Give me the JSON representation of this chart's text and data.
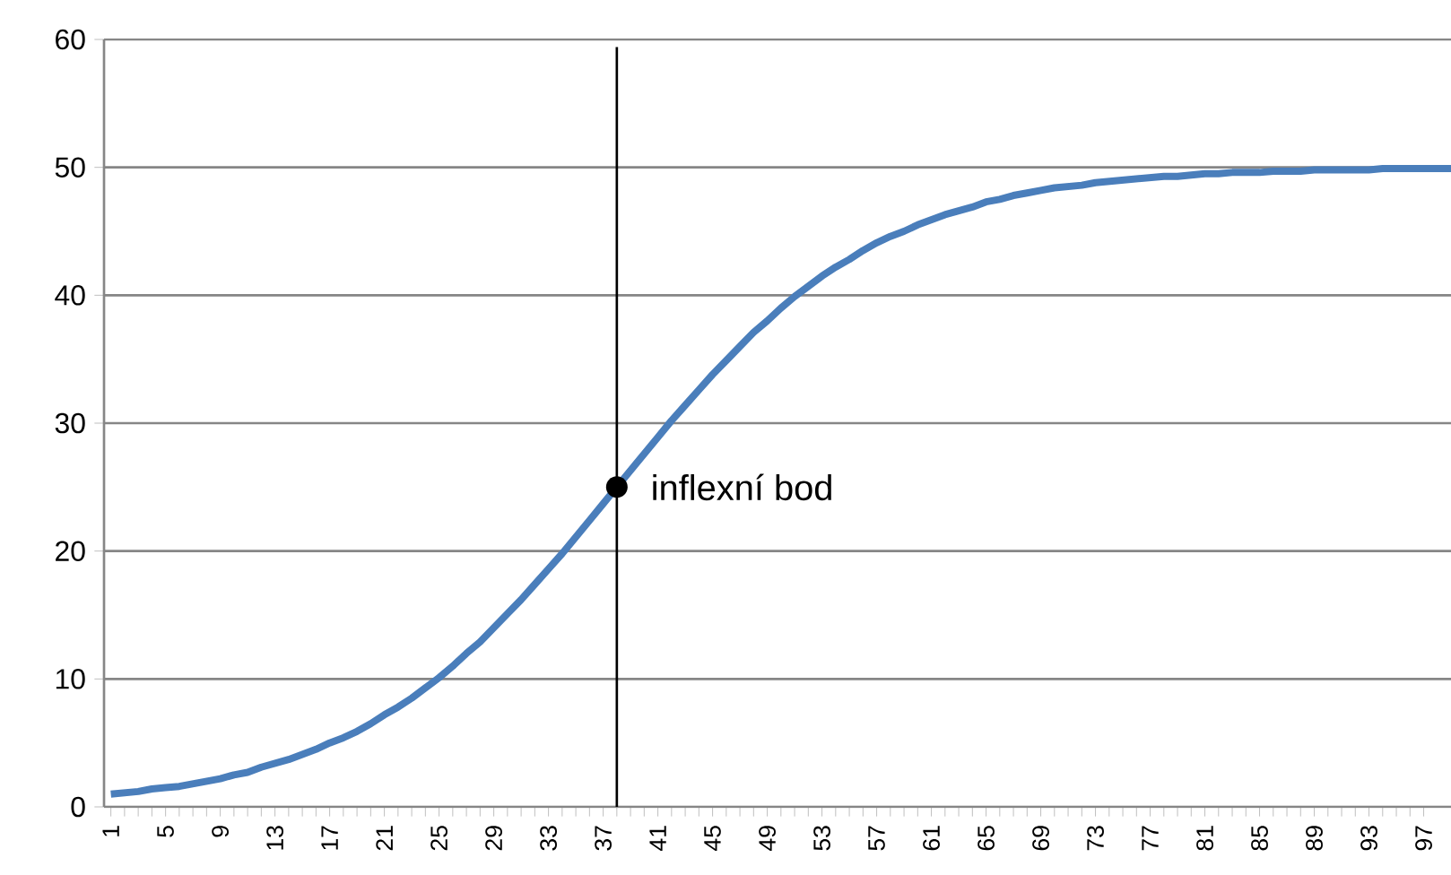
{
  "chart_data": {
    "type": "line",
    "x": [
      1,
      2,
      3,
      4,
      5,
      6,
      7,
      8,
      9,
      10,
      11,
      12,
      13,
      14,
      15,
      16,
      17,
      18,
      19,
      20,
      21,
      22,
      23,
      24,
      25,
      26,
      27,
      28,
      29,
      30,
      31,
      32,
      33,
      34,
      35,
      36,
      37,
      38,
      39,
      40,
      41,
      42,
      43,
      44,
      45,
      46,
      47,
      48,
      49,
      50,
      51,
      52,
      53,
      54,
      55,
      56,
      57,
      58,
      59,
      60,
      61,
      62,
      63,
      64,
      65,
      66,
      67,
      68,
      69,
      70,
      71,
      72,
      73,
      74,
      75,
      76,
      77,
      78,
      79,
      80,
      81,
      82,
      83,
      84,
      85,
      86,
      87,
      88,
      89,
      90,
      91,
      92,
      93,
      94,
      95,
      96,
      97,
      98,
      99
    ],
    "series": [
      {
        "color": "#4a7ebb",
        "values": [
          1.0,
          1.1,
          1.2,
          1.4,
          1.5,
          1.6,
          1.8,
          2.0,
          2.2,
          2.5,
          2.7,
          3.1,
          3.4,
          3.7,
          4.1,
          4.5,
          5.0,
          5.4,
          5.9,
          6.5,
          7.2,
          7.8,
          8.5,
          9.3,
          10.1,
          11.0,
          12.0,
          12.9,
          14.0,
          15.1,
          16.2,
          17.4,
          18.6,
          19.8,
          21.1,
          22.4,
          23.7,
          25.0,
          26.3,
          27.6,
          28.9,
          30.2,
          31.4,
          32.6,
          33.8,
          34.9,
          36.0,
          37.1,
          38.0,
          39.0,
          39.9,
          40.7,
          41.5,
          42.2,
          42.8,
          43.5,
          44.1,
          44.6,
          45.0,
          45.5,
          45.9,
          46.3,
          46.6,
          46.9,
          47.3,
          47.5,
          47.8,
          48.0,
          48.2,
          48.4,
          48.5,
          48.6,
          48.8,
          48.9,
          49.0,
          49.1,
          49.2,
          49.3,
          49.3,
          49.4,
          49.5,
          49.5,
          49.6,
          49.6,
          49.6,
          49.7,
          49.7,
          49.7,
          49.8,
          49.8,
          49.8,
          49.8,
          49.8,
          49.9,
          49.9,
          49.9,
          49.9,
          49.9,
          49.9
        ]
      }
    ],
    "xlim": [
      0.5,
      99
    ],
    "xticks": [
      1,
      5,
      9,
      13,
      17,
      21,
      25,
      29,
      33,
      37,
      41,
      45,
      49,
      53,
      57,
      61,
      65,
      69,
      73,
      77,
      81,
      85,
      89,
      93,
      97
    ],
    "ylim": [
      0,
      60
    ],
    "yticks": [
      0,
      10,
      20,
      30,
      40,
      50,
      60
    ],
    "grid": "y",
    "ref_lines": [
      {
        "axis": "x",
        "value": 38,
        "color": "#000000"
      }
    ],
    "annotations": [
      {
        "text": "inflexní bod",
        "x": 38,
        "y": 25
      }
    ]
  }
}
